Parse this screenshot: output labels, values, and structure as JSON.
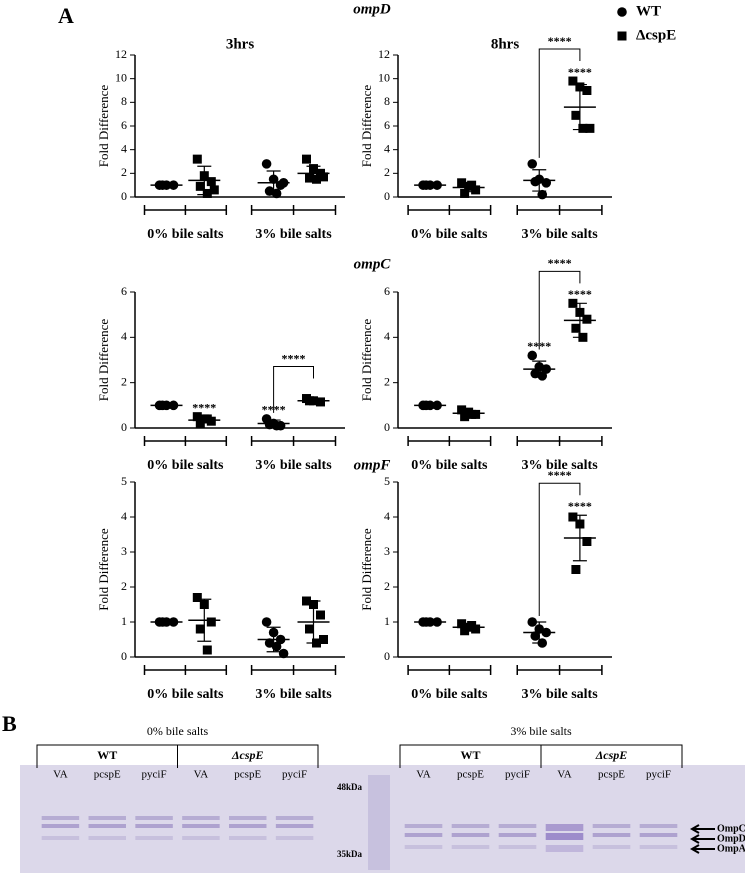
{
  "panel_label": "A",
  "chart_data": [
    {
      "type": "dot",
      "title": "ompD",
      "subtitle": "3hrs",
      "ylabel": "Fold Difference",
      "ylim": [
        0,
        12
      ],
      "yticks": [
        0,
        2,
        4,
        6,
        8,
        10,
        12
      ],
      "groups": [
        "0% bile salts",
        "3% bile salts"
      ],
      "series": [
        {
          "name": "WT",
          "marker": "circle",
          "color": "#000000",
          "values": [
            [
              1,
              1,
              1,
              1
            ],
            [
              2.8,
              1.5,
              1.0,
              0.5,
              0.3,
              1.2
            ]
          ],
          "mean": [
            1,
            1.2
          ],
          "sd": [
            0.05,
            1.0
          ]
        },
        {
          "name": "ΔcspE",
          "marker": "square",
          "color": "#000000",
          "values": [
            [
              3.2,
              1.8,
              1.3,
              0.9,
              0.3,
              0.6
            ],
            [
              3.2,
              2.4,
              2.0,
              1.6,
              1.5,
              1.7
            ]
          ],
          "mean": [
            1.4,
            2.0
          ],
          "sd": [
            1.2,
            0.6
          ]
        }
      ],
      "annotations": []
    },
    {
      "type": "dot",
      "subtitle": "8hrs",
      "ylabel": "Fold Difference",
      "ylim": [
        0,
        12
      ],
      "yticks": [
        0,
        2,
        4,
        6,
        8,
        10,
        12
      ],
      "groups": [
        "0% bile salts",
        "3% bile salts"
      ],
      "series": [
        {
          "marker": "circle",
          "color": "#000000",
          "values": [
            [
              1,
              1,
              1,
              1
            ],
            [
              2.8,
              1.5,
              1.2,
              1.3,
              0.2
            ]
          ],
          "mean": [
            1,
            1.4
          ],
          "sd": [
            0.05,
            0.9
          ]
        },
        {
          "marker": "square",
          "color": "#000000",
          "values": [
            [
              1.2,
              0.9,
              0.6,
              0.3,
              1.0
            ],
            [
              9.8,
              9.3,
              9.0,
              6.9,
              5.8,
              5.8
            ]
          ],
          "mean": [
            0.8,
            7.6
          ],
          "sd": [
            0.35,
            1.9
          ]
        }
      ],
      "annotations": [
        {
          "text": "****",
          "group": 1,
          "series": 1
        },
        {
          "text": "****",
          "group": 1,
          "between": [
            0,
            1
          ]
        }
      ]
    },
    {
      "type": "dot",
      "title": "ompC",
      "ylabel": "Fold Difference",
      "ylim": [
        0,
        6
      ],
      "yticks": [
        0,
        2,
        4,
        6
      ],
      "groups": [
        "0% bile salts",
        "3% bile salts"
      ],
      "series": [
        {
          "marker": "circle",
          "color": "#000000",
          "values": [
            [
              1,
              1,
              1,
              1
            ],
            [
              0.4,
              0.2,
              0.1,
              0.15,
              0.1
            ]
          ],
          "mean": [
            1,
            0.2
          ],
          "sd": [
            0.02,
            0.15
          ]
        },
        {
          "marker": "square",
          "color": "#000000",
          "values": [
            [
              0.5,
              0.4,
              0.3,
              0.2,
              0.4
            ],
            [
              1.3,
              1.2,
              1.15,
              1.2
            ]
          ],
          "mean": [
            0.35,
            1.2
          ],
          "sd": [
            0.12,
            0.08
          ]
        }
      ],
      "annotations": [
        {
          "text": "****",
          "group": 0,
          "series": 1
        },
        {
          "text": "****",
          "group": 1,
          "series": 0
        },
        {
          "text": "****",
          "group": 1,
          "between": [
            0,
            1
          ]
        }
      ]
    },
    {
      "type": "dot",
      "ylabel": "Fold Difference",
      "ylim": [
        0,
        6
      ],
      "yticks": [
        0,
        2,
        4,
        6
      ],
      "groups": [
        "0% bile salts",
        "3% bile salts"
      ],
      "series": [
        {
          "marker": "circle",
          "color": "#000000",
          "values": [
            [
              1,
              1,
              1,
              1
            ],
            [
              3.2,
              2.7,
              2.6,
              2.4,
              2.3
            ]
          ],
          "mean": [
            1,
            2.6
          ],
          "sd": [
            0.02,
            0.35
          ]
        },
        {
          "marker": "square",
          "color": "#000000",
          "values": [
            [
              0.8,
              0.7,
              0.6,
              0.5,
              0.6
            ],
            [
              5.5,
              5.1,
              4.8,
              4.4,
              4.0
            ]
          ],
          "mean": [
            0.65,
            4.75
          ],
          "sd": [
            0.12,
            0.75
          ]
        }
      ],
      "annotations": [
        {
          "text": "****",
          "group": 1,
          "series": 0
        },
        {
          "text": "****",
          "group": 1,
          "series": 1
        },
        {
          "text": "****",
          "group": 1,
          "between": [
            0,
            1
          ]
        }
      ]
    },
    {
      "type": "dot",
      "title": "ompF",
      "ylabel": "Fold Difference",
      "ylim": [
        0,
        5
      ],
      "yticks": [
        0,
        1,
        2,
        3,
        4,
        5
      ],
      "groups": [
        "0% bile salts",
        "3% bile salts"
      ],
      "series": [
        {
          "marker": "circle",
          "color": "#000000",
          "values": [
            [
              1,
              1,
              1,
              1
            ],
            [
              1.0,
              0.7,
              0.5,
              0.4,
              0.3,
              0.1
            ]
          ],
          "mean": [
            1,
            0.5
          ],
          "sd": [
            0.02,
            0.35
          ]
        },
        {
          "marker": "square",
          "color": "#000000",
          "values": [
            [
              1.7,
              1.5,
              1.0,
              0.8,
              0.2
            ],
            [
              1.6,
              1.5,
              1.2,
              0.8,
              0.4,
              0.5
            ]
          ],
          "mean": [
            1.05,
            1.0
          ],
          "sd": [
            0.6,
            0.6
          ]
        }
      ],
      "annotations": []
    },
    {
      "type": "dot",
      "ylabel": "Fold Difference",
      "ylim": [
        0,
        5
      ],
      "yticks": [
        0,
        1,
        2,
        3,
        4,
        5
      ],
      "groups": [
        "0% bile salts",
        "3% bile salts"
      ],
      "series": [
        {
          "marker": "circle",
          "color": "#000000",
          "values": [
            [
              1,
              1,
              1,
              1
            ],
            [
              1.0,
              0.8,
              0.7,
              0.6,
              0.4
            ]
          ],
          "mean": [
            1,
            0.7
          ],
          "sd": [
            0.02,
            0.3
          ]
        },
        {
          "marker": "square",
          "color": "#000000",
          "values": [
            [
              0.95,
              0.85,
              0.8,
              0.75,
              0.9
            ],
            [
              4.0,
              3.8,
              3.3,
              2.5
            ]
          ],
          "mean": [
            0.85,
            3.4
          ],
          "sd": [
            0.1,
            0.65
          ]
        }
      ],
      "annotations": [
        {
          "text": "****",
          "group": 1,
          "series": 1
        },
        {
          "text": "****",
          "group": 1,
          "between": [
            0,
            1
          ]
        }
      ]
    }
  ],
  "gel": {
    "label": "B",
    "conditions": [
      {
        "label": "0% bile salts",
        "strains": [
          {
            "name": "WT",
            "lanes": [
              "VA",
              "pcspE",
              "pyciF"
            ]
          },
          {
            "name": "ΔcspE",
            "lanes": [
              "VA",
              "pcspE",
              "pyciF"
            ]
          }
        ]
      },
      {
        "label": "3% bile salts",
        "strains": [
          {
            "name": "WT",
            "lanes": [
              "VA",
              "pcspE",
              "pyciF"
            ]
          },
          {
            "name": "ΔcspE",
            "lanes": [
              "VA",
              "pcspE",
              "pyciF"
            ]
          }
        ]
      }
    ],
    "markers": [
      "48kDa",
      "35kDa"
    ],
    "bands": [
      "OmpC",
      "OmpD",
      "OmpA"
    ]
  }
}
